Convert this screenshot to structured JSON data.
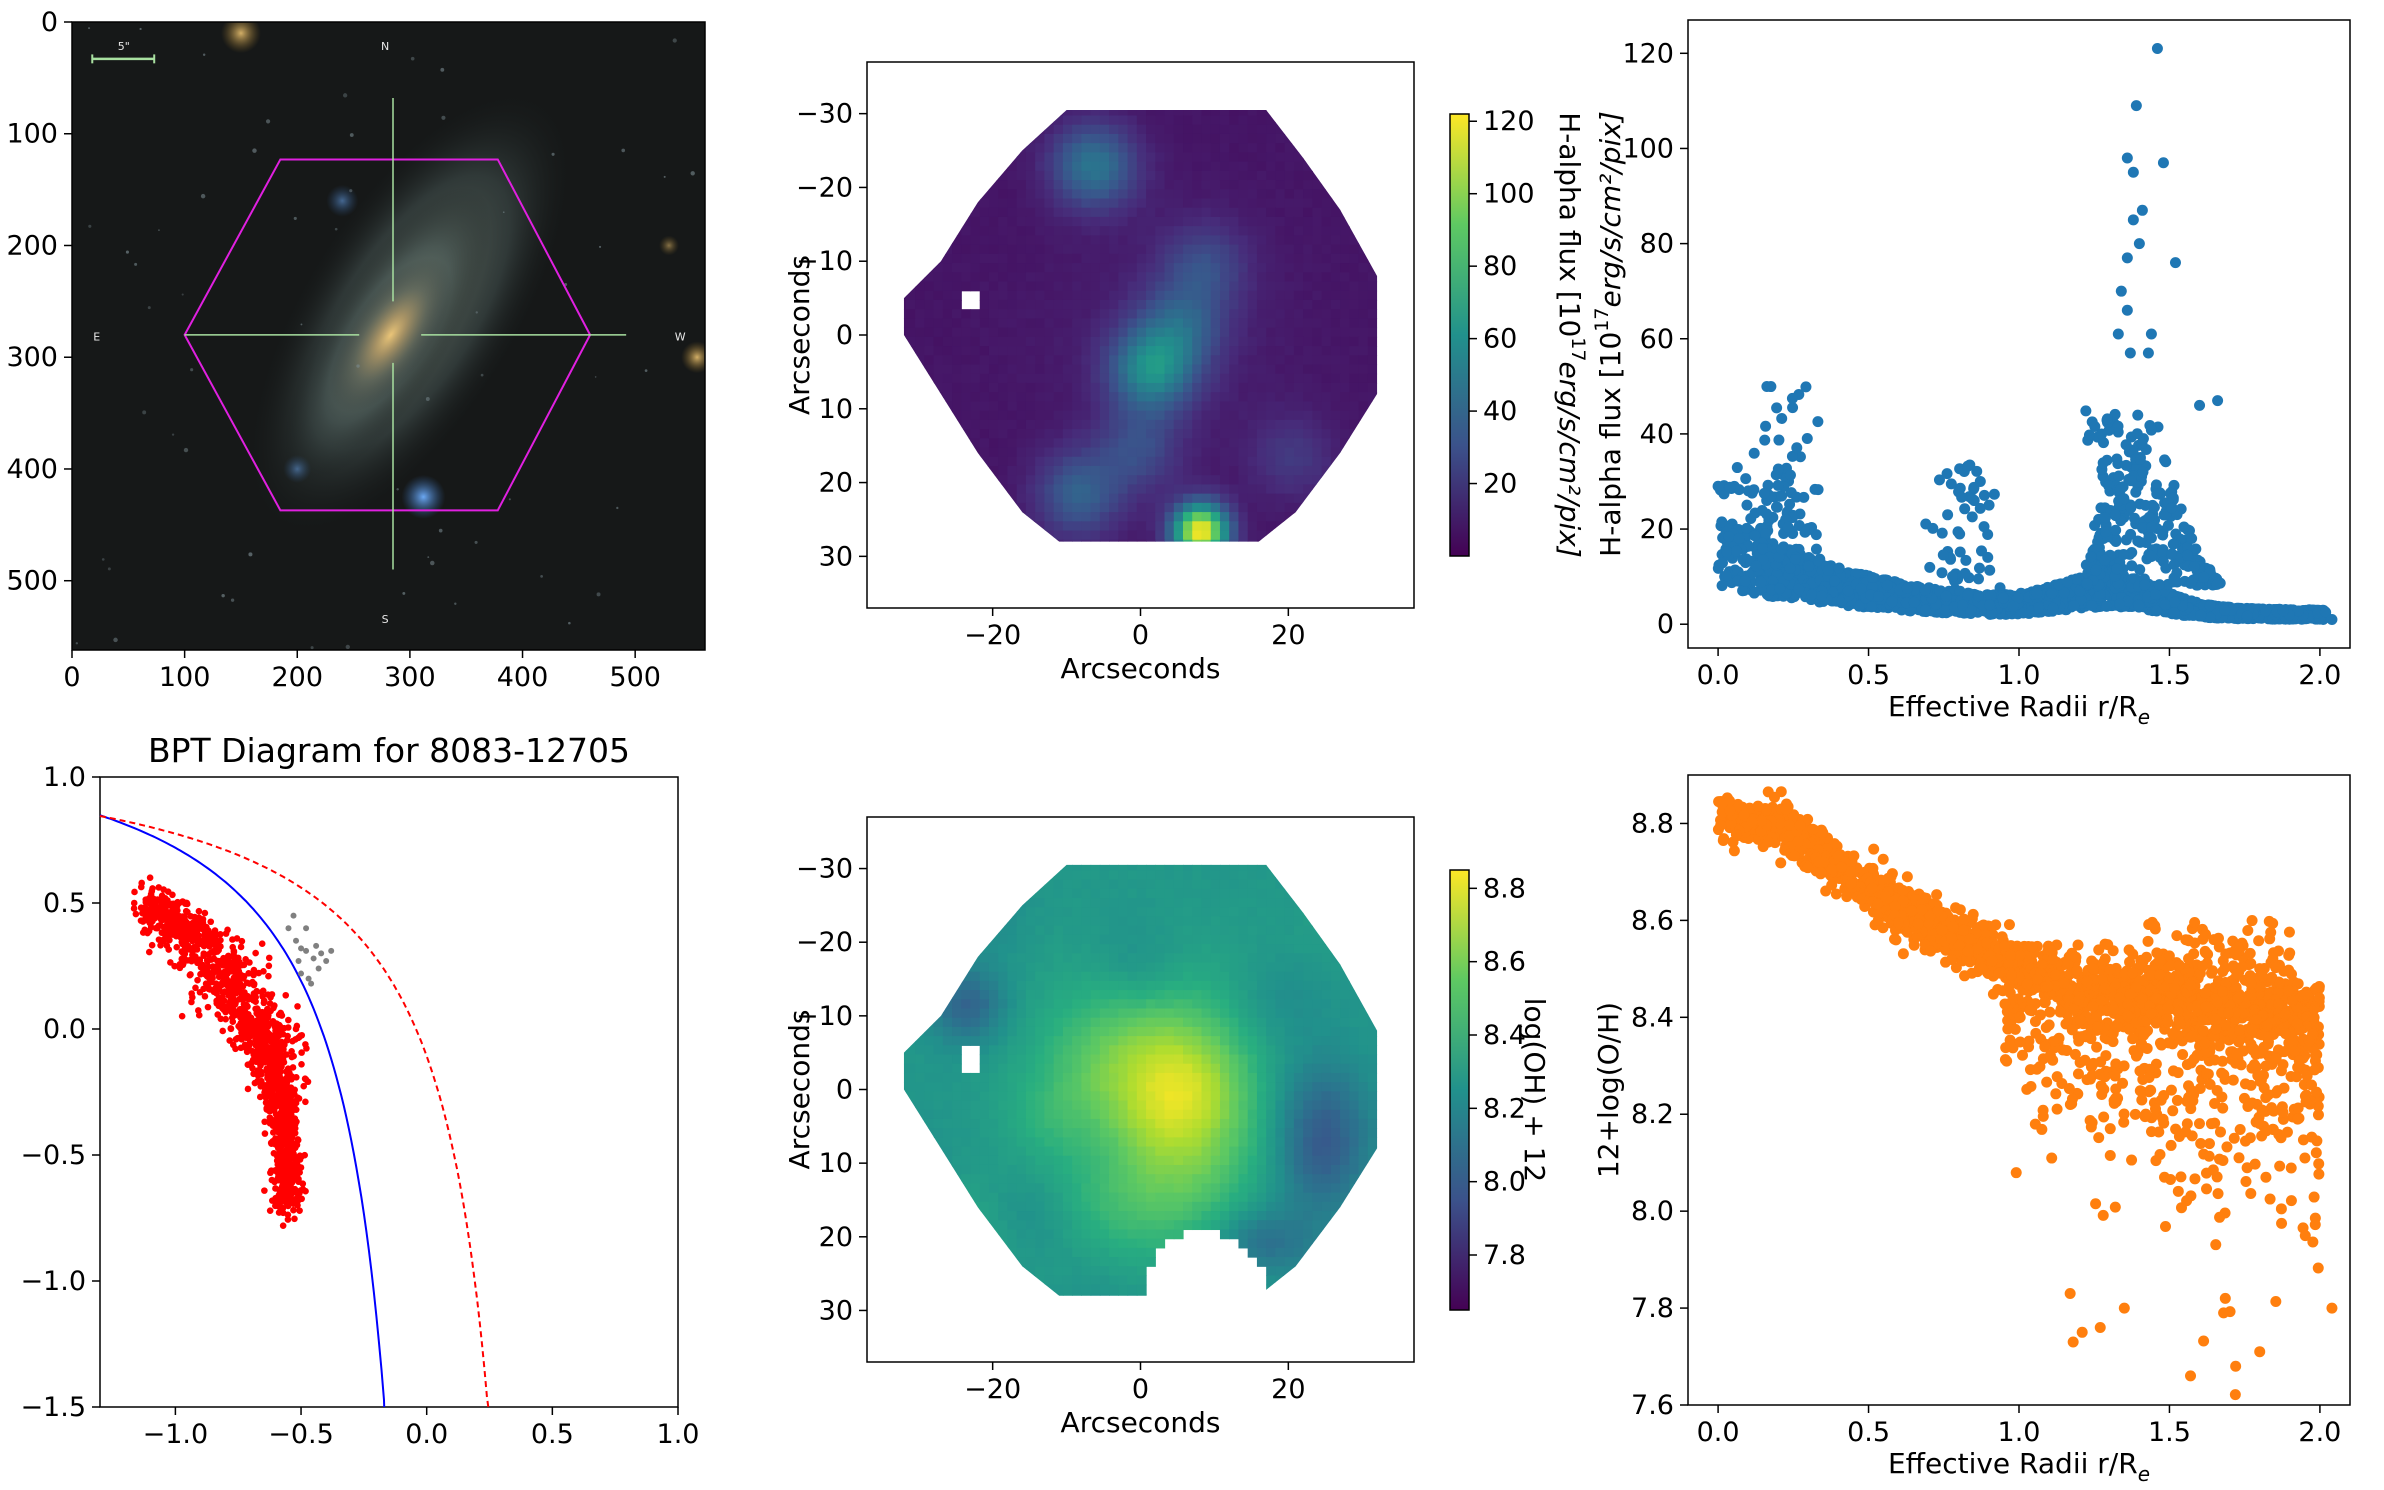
{
  "chart_data": [
    {
      "id": "sdss-image",
      "type": "image",
      "title": "",
      "xlim": [
        0,
        562
      ],
      "ylim": [
        562,
        0
      ],
      "xticks": [
        0,
        100,
        200,
        300,
        400,
        500
      ],
      "yticks": [
        0,
        100,
        200,
        300,
        400,
        500
      ],
      "scale_label": "5\"",
      "compass": {
        "north": "N",
        "south": "S",
        "east": "E",
        "west": "W"
      },
      "hexagon_color": "#e020e0",
      "hexagon_vertices": [
        [
          185,
          123
        ],
        [
          378,
          123
        ],
        [
          460,
          280
        ],
        [
          378,
          437
        ],
        [
          185,
          437
        ],
        [
          100,
          280
        ]
      ],
      "crosshair_center": [
        285,
        280
      ],
      "crosshair_color": "#a8e0a0"
    },
    {
      "id": "halpha-map",
      "type": "heatmap",
      "xlabel": "Arcseconds",
      "ylabel": "Arcseconds",
      "xlim": [
        -37,
        37
      ],
      "ylim": [
        37,
        -37
      ],
      "xticks": [
        -20,
        0,
        20
      ],
      "yticks": [
        -30,
        -20,
        -10,
        0,
        10,
        20,
        30
      ],
      "hex_extent": {
        "x": [
          -32,
          32
        ],
        "y": [
          -30,
          27.5
        ]
      },
      "colorbar": {
        "label": "H-alpha flux [10",
        "label_exp": "17",
        "label_units": "erg/s/cm²/pix]",
        "range": [
          0,
          122
        ],
        "ticks": [
          20,
          40,
          60,
          80,
          100,
          120
        ]
      },
      "blobs": [
        {
          "x": 7.5,
          "y": 26,
          "flux": 120
        },
        {
          "x": 1,
          "y": 4,
          "flux": 55
        },
        {
          "x": -7,
          "y": -23.5,
          "flux": 45
        },
        {
          "x": -9,
          "y": 21,
          "flux": 35
        },
        {
          "x": 5,
          "y": -2,
          "flux": 30
        },
        {
          "x": 8,
          "y": -10,
          "flux": 25
        },
        {
          "x": -1,
          "y": 15,
          "flux": 25
        },
        {
          "x": 20,
          "y": 16,
          "flux": 18
        }
      ]
    },
    {
      "id": "halpha-radial",
      "type": "scatter",
      "xlabel": "Effective Radii r/R",
      "xlabel_sub": "e",
      "ylabel": "H-alpha flux [10",
      "ylabel_exp": "17",
      "ylabel_units": "erg/s/cm²/pix]",
      "xlim": [
        -0.1,
        2.1
      ],
      "ylim": [
        -5,
        127
      ],
      "xticks": [
        0.0,
        0.5,
        1.0,
        1.5,
        2.0
      ],
      "yticks": [
        0,
        20,
        40,
        60,
        80,
        100,
        120
      ],
      "color": "#1f77b4",
      "outliers": [
        [
          1.46,
          121
        ],
        [
          1.39,
          109
        ],
        [
          1.36,
          98
        ],
        [
          1.38,
          95
        ],
        [
          1.48,
          97
        ],
        [
          1.41,
          87
        ],
        [
          1.38,
          85
        ],
        [
          1.4,
          80
        ],
        [
          1.36,
          77
        ],
        [
          1.52,
          76
        ],
        [
          1.34,
          70
        ],
        [
          1.36,
          66
        ],
        [
          1.33,
          61
        ],
        [
          1.44,
          61
        ],
        [
          1.37,
          57
        ],
        [
          1.43,
          57
        ],
        [
          1.66,
          47
        ],
        [
          1.6,
          46
        ]
      ],
      "peaks": [
        {
          "x": 0.23,
          "height": 50
        },
        {
          "x": 0.8,
          "height": 34
        },
        {
          "x": 1.3,
          "height": 46
        }
      ]
    },
    {
      "id": "bpt-diagram",
      "type": "scatter",
      "title": "BPT Diagram for 8083-12705",
      "xlim": [
        -1.3,
        1.0
      ],
      "ylim": [
        -1.5,
        1.0
      ],
      "xticks": [
        -1.0,
        -0.5,
        0.0,
        0.5,
        1.0
      ],
      "yticks": [
        -1.5,
        -1.0,
        -0.5,
        0.0,
        0.5,
        1.0
      ],
      "kauffmann_color": "#0000ff",
      "kewley_color": "#ff0000",
      "starforming_color": "#ff0000",
      "composite_color": "#808080",
      "starforming_ridge": [
        [
          -1.13,
          0.5
        ],
        [
          -1.0,
          0.45
        ],
        [
          -0.9,
          0.35
        ],
        [
          -0.8,
          0.2
        ],
        [
          -0.7,
          0.05
        ],
        [
          -0.62,
          -0.1
        ],
        [
          -0.58,
          -0.3
        ],
        [
          -0.56,
          -0.5
        ],
        [
          -0.56,
          -0.7
        ]
      ],
      "composite_points": [
        [
          -0.55,
          0.4
        ],
        [
          -0.52,
          0.35
        ],
        [
          -0.48,
          0.31
        ],
        [
          -0.45,
          0.28
        ],
        [
          -0.5,
          0.22
        ],
        [
          -0.46,
          0.18
        ],
        [
          -0.42,
          0.3
        ],
        [
          -0.38,
          0.31
        ],
        [
          -0.44,
          0.33
        ],
        [
          -0.48,
          0.4
        ],
        [
          -0.53,
          0.45
        ],
        [
          -0.47,
          0.2
        ],
        [
          -0.51,
          0.27
        ],
        [
          -0.43,
          0.24
        ],
        [
          -0.5,
          0.32
        ],
        [
          -0.4,
          0.27
        ]
      ]
    },
    {
      "id": "metallicity-map",
      "type": "heatmap",
      "xlabel": "Arcseconds",
      "ylabel": "Arcseconds",
      "xlim": [
        -37,
        37
      ],
      "ylim": [
        37,
        -37
      ],
      "xticks": [
        -20,
        0,
        20
      ],
      "yticks": [
        -30,
        -20,
        -10,
        0,
        10,
        20,
        30
      ],
      "colorbar": {
        "label": "log(OH) + 12",
        "range": [
          7.65,
          8.85
        ],
        "ticks": [
          7.8,
          8.0,
          8.2,
          8.4,
          8.6,
          8.8
        ]
      },
      "peak": {
        "x": 0,
        "y": 2,
        "value": 8.83
      },
      "edge_value": 8.3
    },
    {
      "id": "metallicity-radial",
      "type": "scatter",
      "xlabel": "Effective Radii r/R",
      "xlabel_sub": "e",
      "ylabel": "12+log(O/H)",
      "xlim": [
        -0.1,
        2.1
      ],
      "ylim": [
        7.6,
        8.9
      ],
      "xticks": [
        0.0,
        0.5,
        1.0,
        1.5,
        2.0
      ],
      "yticks": [
        7.6,
        7.8,
        8.0,
        8.2,
        8.4,
        8.6,
        8.8
      ],
      "color": "#ff7f0e",
      "trend": [
        [
          0.0,
          8.81
        ],
        [
          0.2,
          8.8
        ],
        [
          0.5,
          8.66
        ],
        [
          0.9,
          8.53
        ],
        [
          1.2,
          8.47
        ],
        [
          1.5,
          8.45
        ],
        [
          1.8,
          8.42
        ],
        [
          2.0,
          8.4
        ]
      ],
      "outliers": [
        [
          1.57,
          7.66
        ],
        [
          1.72,
          7.68
        ],
        [
          1.8,
          7.71
        ],
        [
          1.18,
          7.73
        ],
        [
          1.21,
          7.75
        ],
        [
          1.27,
          7.76
        ],
        [
          1.68,
          7.79
        ],
        [
          2.04,
          7.8
        ],
        [
          1.35,
          7.8
        ],
        [
          1.17,
          7.83
        ]
      ]
    }
  ]
}
